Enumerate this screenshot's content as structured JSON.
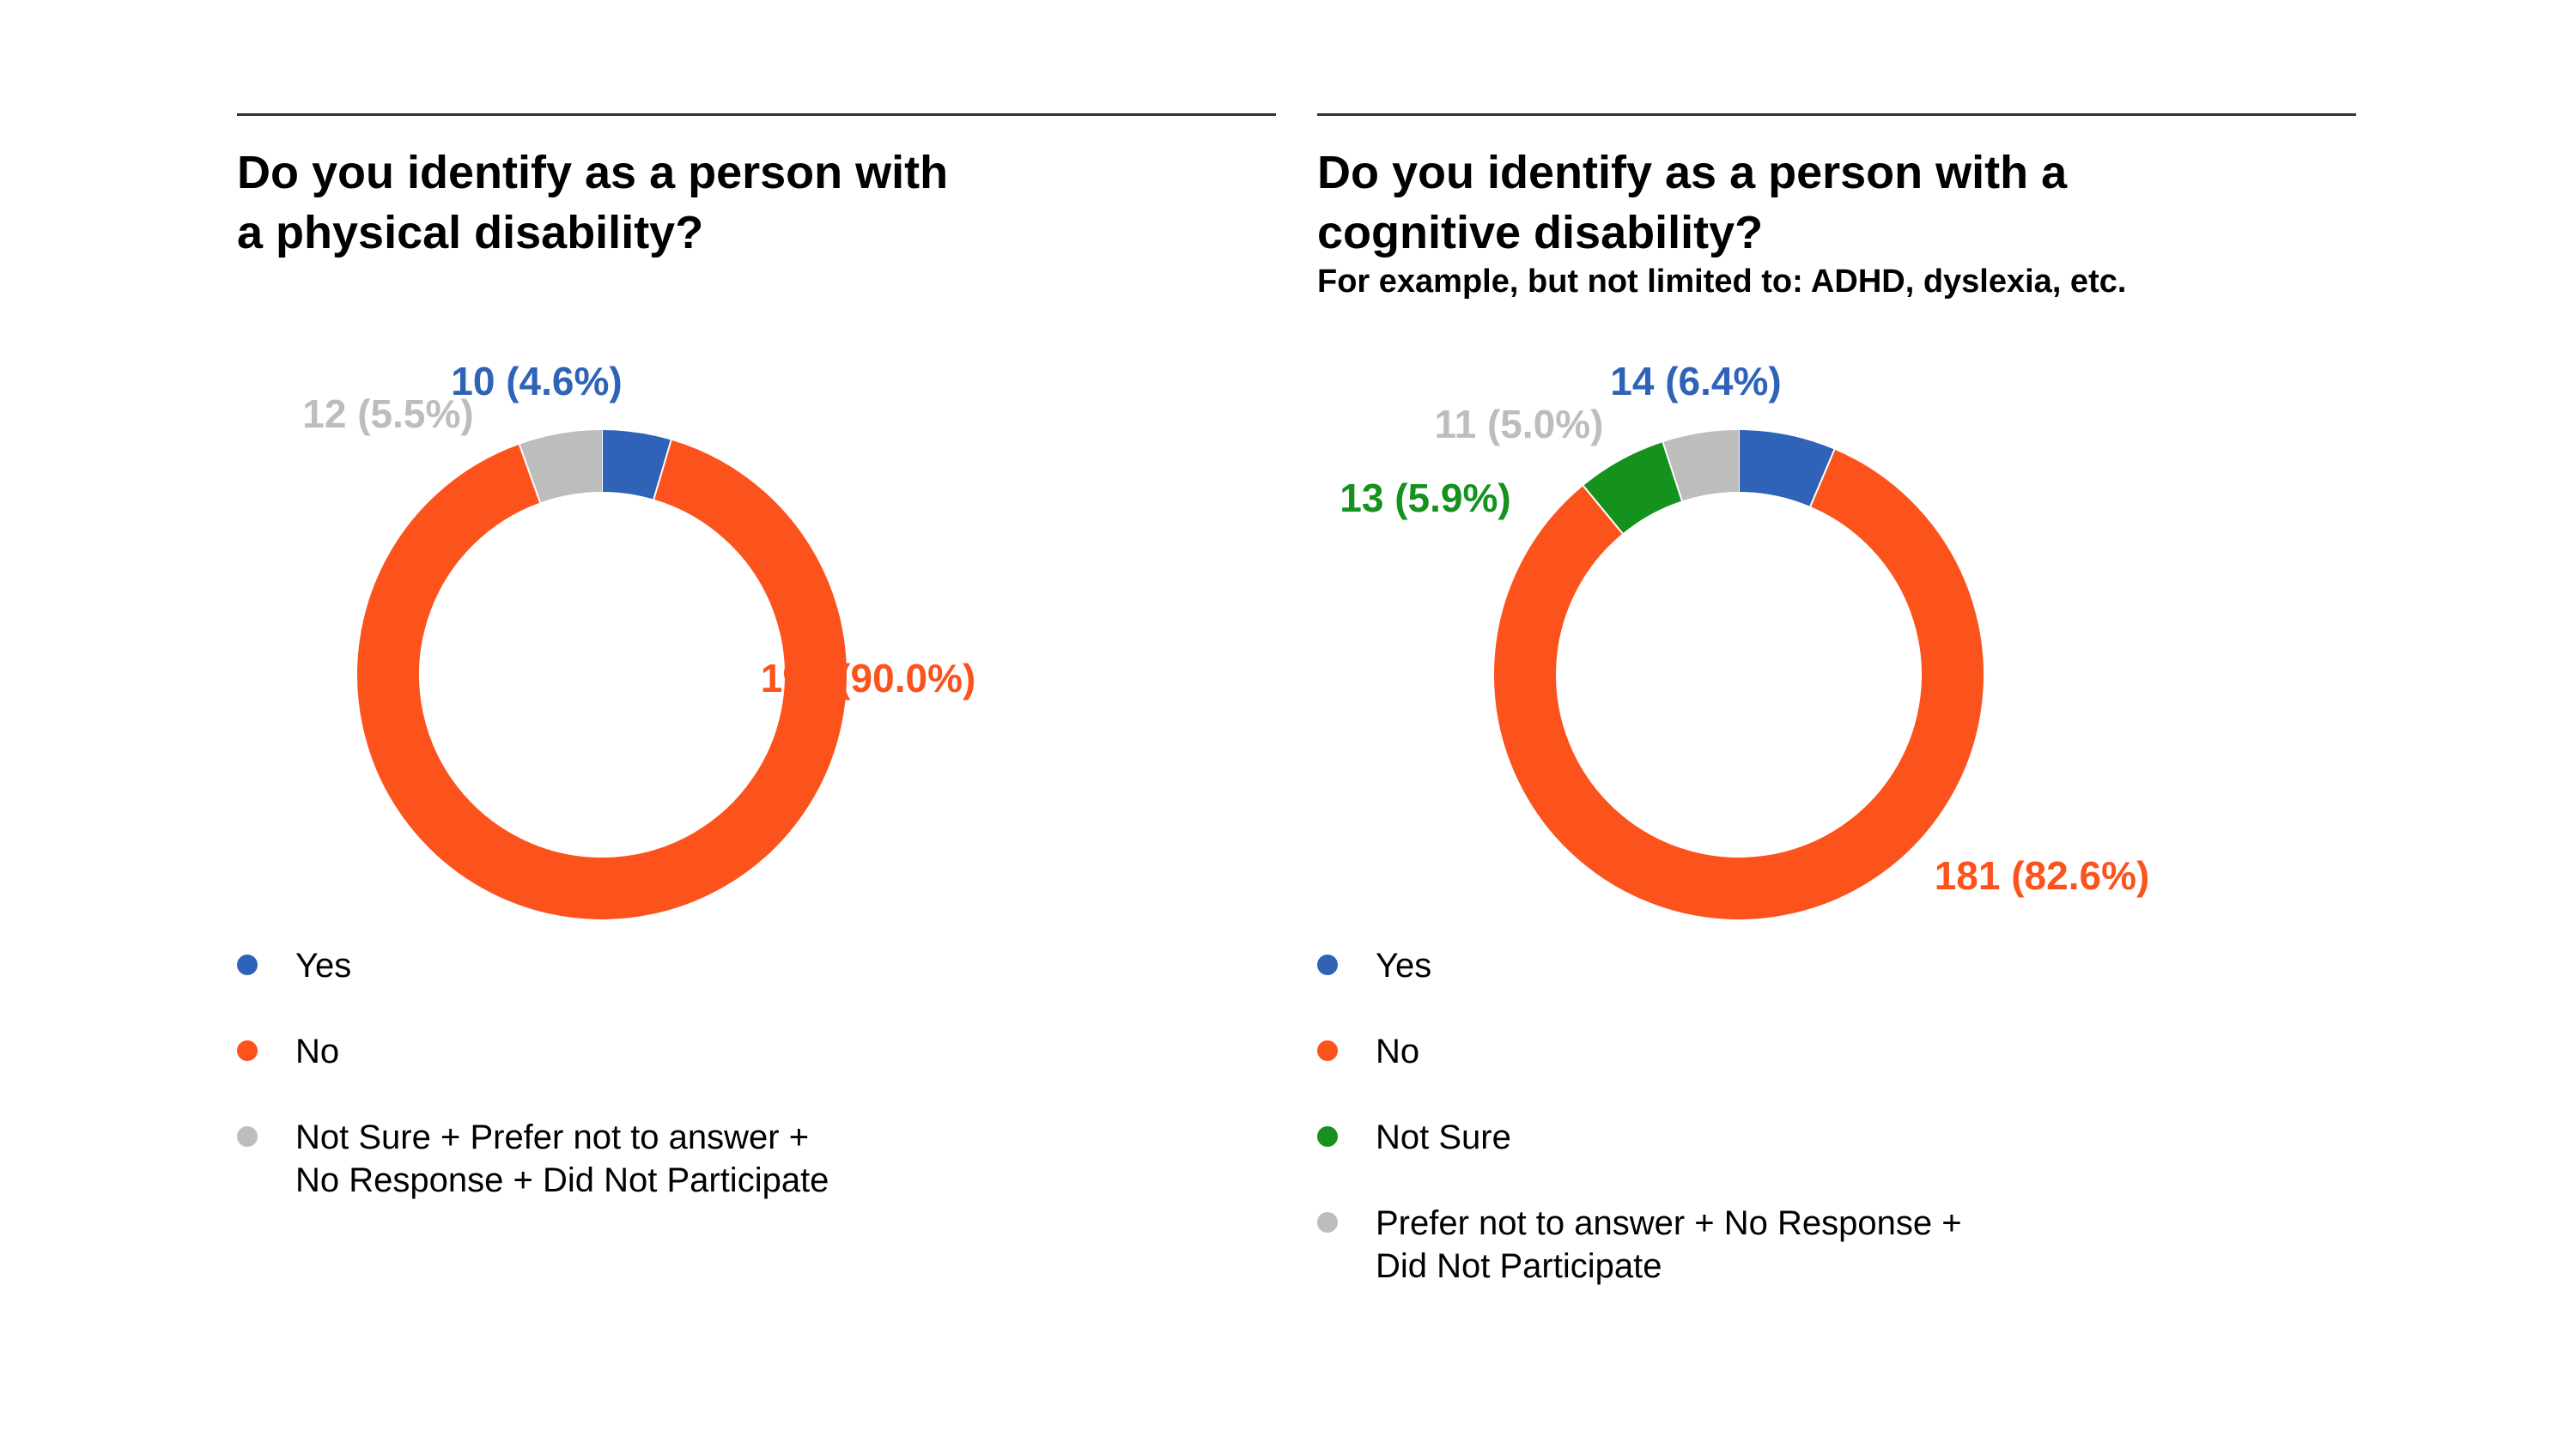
{
  "colors": {
    "yes": "#2E63B8",
    "no": "#FC531D",
    "not_sure": "#15921E",
    "other": "#BDBDBD"
  },
  "chart_data": [
    {
      "type": "pie",
      "variant": "donut",
      "title": "Do you identify as a person with\na physical disability?",
      "subtitle": "",
      "legend_position": "bottom",
      "slices": [
        {
          "name": "Yes",
          "value": 10,
          "percent": 4.6,
          "label": "10 (4.6%)",
          "color": "#2E63B8"
        },
        {
          "name": "No",
          "value": 197,
          "percent": 90.0,
          "label": "197 (90.0%)",
          "color": "#FC531D"
        },
        {
          "name": "Not Sure + Prefer not to answer +\nNo Response + Did Not Participate",
          "value": 12,
          "percent": 5.5,
          "label": "12 (5.5%)",
          "color": "#BDBDBD"
        }
      ]
    },
    {
      "type": "pie",
      "variant": "donut",
      "title": "Do you identify as a person with a\ncognitive disability?",
      "subtitle": "For example, but not limited to: ADHD, dyslexia, etc.",
      "legend_position": "bottom",
      "slices": [
        {
          "name": "Yes",
          "value": 14,
          "percent": 6.4,
          "label": "14 (6.4%)",
          "color": "#2E63B8"
        },
        {
          "name": "No",
          "value": 181,
          "percent": 82.6,
          "label": "181 (82.6%)",
          "color": "#FC531D"
        },
        {
          "name": "Not Sure",
          "value": 13,
          "percent": 5.9,
          "label": "13 (5.9%)",
          "color": "#15921E"
        },
        {
          "name": "Prefer not to answer + No Response +\nDid Not Participate",
          "value": 11,
          "percent": 5.0,
          "label": "11 (5.0%)",
          "color": "#BDBDBD"
        }
      ]
    }
  ]
}
